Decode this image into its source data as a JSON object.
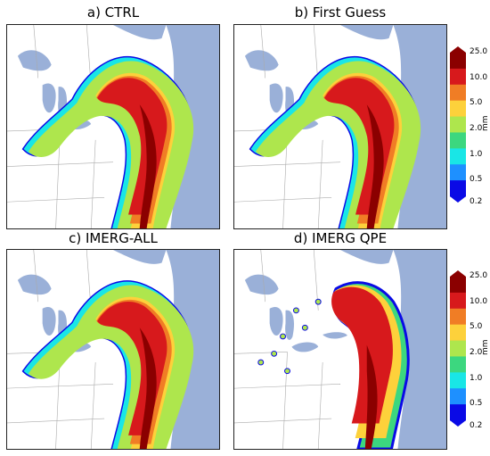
{
  "panels": [
    {
      "id": "a",
      "title": "a) CTRL"
    },
    {
      "id": "b",
      "title": "b) First Guess"
    },
    {
      "id": "c",
      "title": "c) IMERG-ALL"
    },
    {
      "id": "d",
      "title": "d) IMERG QPE"
    }
  ],
  "colorbar": {
    "unit": "mm",
    "ticks": [
      "25.0",
      "10.0",
      "5.0",
      "2.0",
      "1.0",
      "0.5",
      "0.2"
    ],
    "colors": [
      "#8b0000",
      "#d7191c",
      "#f07d25",
      "#fdd13b",
      "#aee64d",
      "#3cd77f",
      "#19e6e6",
      "#1e90ff",
      "#0a0ae6"
    ]
  },
  "colors": {
    "land": "#ffffff",
    "water": "#9ab0d8",
    "border": "#aaaaaa"
  }
}
